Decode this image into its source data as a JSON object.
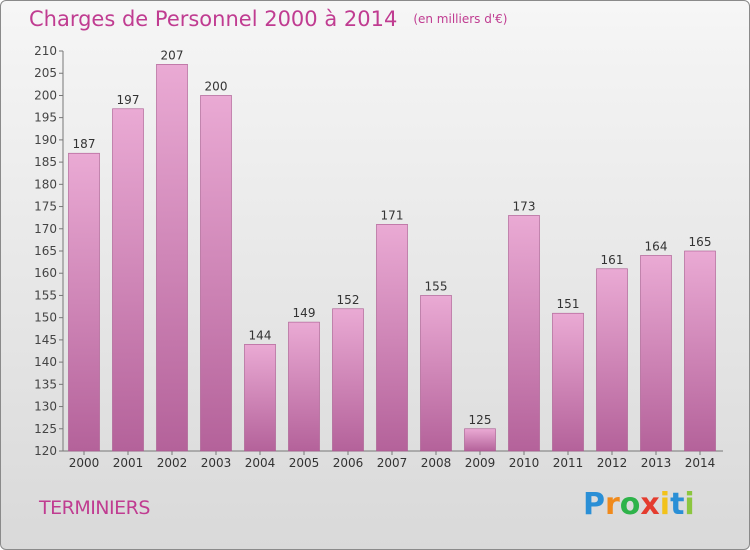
{
  "title": "Charges de Personnel 2000 à 2014",
  "subtitle": "(en milliers d'€)",
  "commune": "TERMINIERS",
  "logo": {
    "letters": [
      "P",
      "r",
      "o",
      "x",
      "i",
      "t",
      "i"
    ],
    "colors": [
      "#2a8fd6",
      "#f08a1c",
      "#2eb34a",
      "#e43c2f",
      "#f2c21a",
      "#2a8fd6",
      "#8cc63f"
    ]
  },
  "colors": {
    "accent": "#c03c91",
    "bar_light": "#e9a9d3",
    "bar_dark": "#b5649a"
  },
  "chart_data": {
    "type": "bar",
    "categories": [
      "2000",
      "2001",
      "2002",
      "2003",
      "2004",
      "2005",
      "2006",
      "2007",
      "2008",
      "2009",
      "2010",
      "2011",
      "2012",
      "2013",
      "2014"
    ],
    "values": [
      187,
      197,
      207,
      200,
      144,
      149,
      152,
      171,
      155,
      125,
      173,
      151,
      161,
      164,
      165
    ],
    "ylim": [
      120,
      210
    ],
    "yticks": [
      120,
      125,
      130,
      135,
      140,
      145,
      150,
      155,
      160,
      165,
      170,
      175,
      180,
      185,
      190,
      195,
      200,
      205,
      210
    ],
    "grid": false
  }
}
